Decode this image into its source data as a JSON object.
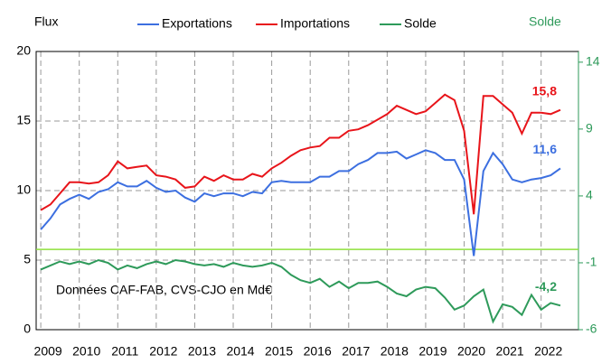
{
  "chart_data": {
    "type": "line",
    "y_label": "Flux",
    "y2_label": "Solde",
    "annotation": "Données CAF-FAB, CVS-CJO en Md€",
    "x": [
      2009,
      2009.25,
      2009.5,
      2009.75,
      2010,
      2010.25,
      2010.5,
      2010.75,
      2011,
      2011.25,
      2011.5,
      2011.75,
      2012,
      2012.25,
      2012.5,
      2012.75,
      2013,
      2013.25,
      2013.5,
      2013.75,
      2014,
      2014.25,
      2014.5,
      2014.75,
      2015,
      2015.25,
      2015.5,
      2015.75,
      2016,
      2016.25,
      2016.5,
      2016.75,
      2017,
      2017.25,
      2017.5,
      2017.75,
      2018,
      2018.25,
      2018.5,
      2018.75,
      2019,
      2019.25,
      2019.5,
      2019.75,
      2020,
      2020.25,
      2020.5,
      2020.75,
      2021,
      2021.25,
      2021.5,
      2021.75,
      2022,
      2022.25,
      2022.5
    ],
    "xlim": [
      2008.88,
      2022.97
    ],
    "xticks": [
      2009,
      2010,
      2011,
      2012,
      2013,
      2014,
      2015,
      2016,
      2017,
      2018,
      2019,
      2020,
      2021,
      2022
    ],
    "ylim": [
      0,
      20
    ],
    "yticks": [
      0,
      5,
      10,
      15,
      20
    ],
    "y2lim": [
      -6,
      14.8
    ],
    "y2ticks": [
      -6,
      -1,
      4,
      9,
      14
    ],
    "grid": true,
    "zero_line_y2": true,
    "series": [
      {
        "name": "Exportations",
        "color": "#3c6fe0",
        "end_label": "11,6",
        "values": [
          7.2,
          8.0,
          9.0,
          9.4,
          9.7,
          9.4,
          9.9,
          10.1,
          10.6,
          10.3,
          10.3,
          10.7,
          10.2,
          9.9,
          10.0,
          9.5,
          9.2,
          9.8,
          9.6,
          9.8,
          9.8,
          9.6,
          9.9,
          9.8,
          10.6,
          10.7,
          10.6,
          10.6,
          10.6,
          11.0,
          11.0,
          11.4,
          11.4,
          11.9,
          12.2,
          12.7,
          12.7,
          12.8,
          12.3,
          12.6,
          12.9,
          12.7,
          12.2,
          12.2,
          10.8,
          5.3,
          11.4,
          12.7,
          11.9,
          10.8,
          10.6,
          10.8,
          10.9,
          11.1,
          11.6
        ]
      },
      {
        "name": "Importations",
        "color": "#e8141a",
        "end_label": "15,8",
        "values": [
          8.6,
          9.0,
          9.8,
          10.6,
          10.6,
          10.5,
          10.6,
          11.1,
          12.1,
          11.6,
          11.7,
          11.8,
          11.1,
          11.0,
          10.8,
          10.2,
          10.3,
          11.0,
          10.7,
          11.1,
          10.8,
          10.8,
          11.2,
          11.0,
          11.6,
          12.0,
          12.5,
          12.9,
          13.1,
          13.2,
          13.8,
          13.8,
          14.3,
          14.4,
          14.7,
          15.1,
          15.5,
          16.1,
          15.8,
          15.5,
          15.7,
          16.3,
          16.9,
          16.5,
          14.3,
          8.3,
          16.8,
          16.8,
          16.2,
          15.6,
          14.1,
          15.6,
          15.6,
          15.5,
          15.8
        ]
      },
      {
        "name": "Solde",
        "color": "#2e9a5a",
        "axis": "y2",
        "end_label": "-4,2",
        "values": [
          -1.5,
          -1.2,
          -0.9,
          -1.1,
          -0.9,
          -1.1,
          -0.8,
          -1.0,
          -1.5,
          -1.2,
          -1.4,
          -1.1,
          -0.9,
          -1.1,
          -0.8,
          -0.9,
          -1.1,
          -1.2,
          -1.1,
          -1.3,
          -1.0,
          -1.2,
          -1.3,
          -1.2,
          -1.0,
          -1.3,
          -1.9,
          -2.3,
          -2.5,
          -2.2,
          -2.8,
          -2.4,
          -2.9,
          -2.5,
          -2.5,
          -2.4,
          -2.8,
          -3.3,
          -3.5,
          -3.0,
          -2.8,
          -2.9,
          -3.6,
          -4.5,
          -4.2,
          -3.5,
          -3.0,
          -5.4,
          -4.1,
          -4.3,
          -4.9,
          -3.4,
          -4.5,
          -4.0,
          -4.2
        ]
      }
    ]
  }
}
